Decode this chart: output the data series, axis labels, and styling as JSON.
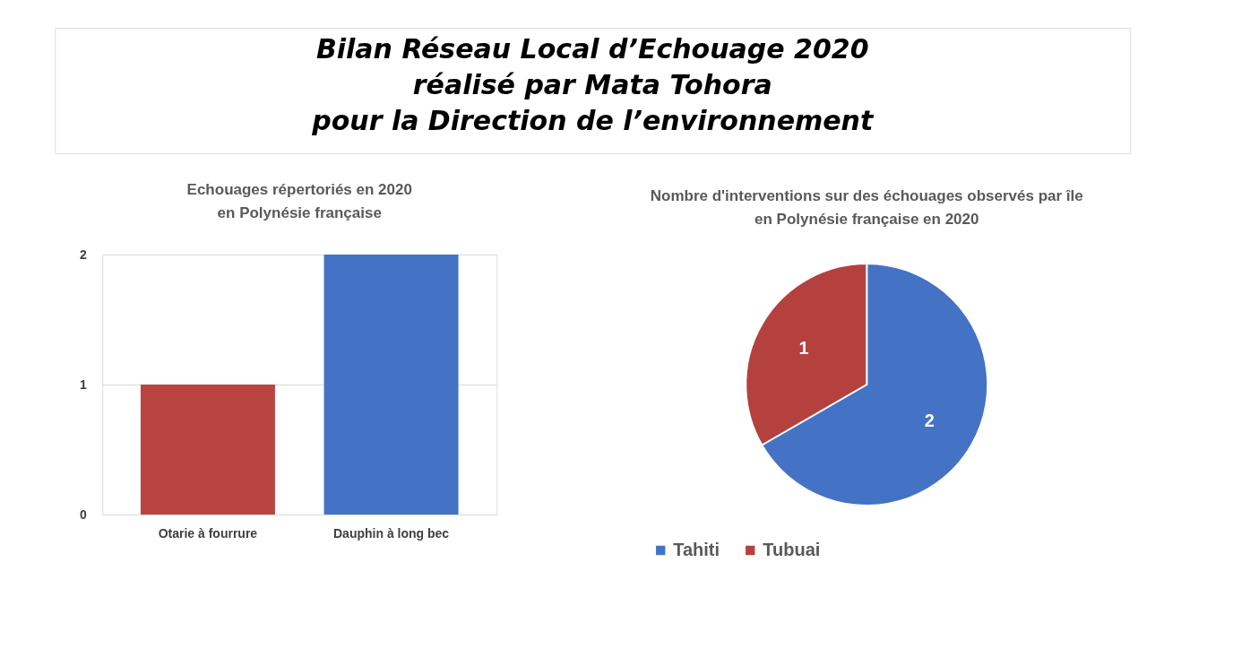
{
  "chart_data": [
    {
      "type": "other",
      "title": "Bilan Réseau Local d’Echouage 2020\nréalisé par Mata Tohora\npour la Direction de l’environnement"
    },
    {
      "type": "bar",
      "title": "Echouages répertoriés en 2020\nen Polynésie française",
      "categories": [
        "Otarie à fourrure",
        "Dauphin à long bec"
      ],
      "values": [
        1,
        2
      ],
      "colors": [
        "#b94442",
        "#4472c4"
      ],
      "ylim": [
        0,
        2
      ],
      "yticks": [
        0,
        1,
        2
      ],
      "grid": "y"
    },
    {
      "type": "pie",
      "title": "Nombre d'interventions sur des échouages observés par île\nen Polynésie française en 2020",
      "categories": [
        "Tahiti",
        "Tubuai"
      ],
      "values": [
        2,
        1
      ],
      "colors": [
        "#4472c4",
        "#b5413f"
      ],
      "data_labels": true,
      "legend": "bottom"
    }
  ]
}
